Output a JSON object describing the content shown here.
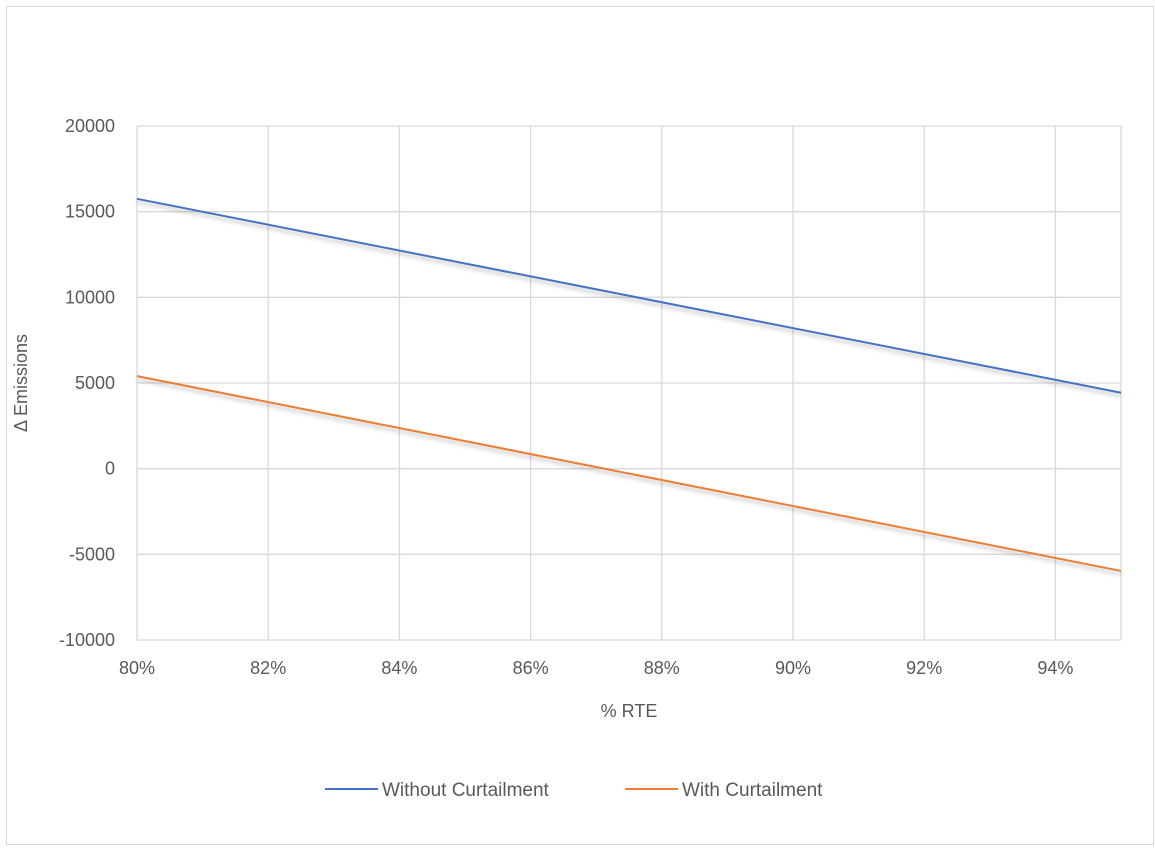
{
  "chart_data": {
    "type": "line",
    "title": "",
    "xlabel": "% RTE",
    "ylabel": "Δ Emissions",
    "x": [
      0.8,
      0.95
    ],
    "xlim": [
      0.8,
      0.95
    ],
    "ylim": [
      -10000,
      20000
    ],
    "x_ticks": [
      "80%",
      "82%",
      "84%",
      "86%",
      "88%",
      "90%",
      "92%",
      "94%"
    ],
    "y_ticks": [
      "20000",
      "15000",
      "10000",
      "5000",
      "0",
      "-5000",
      "-10000"
    ],
    "grid": true,
    "legend_position": "bottom",
    "series": [
      {
        "name": "Without Curtailment",
        "color": "#4472C4",
        "values": [
          15750,
          4430
        ]
      },
      {
        "name": "With Curtailment",
        "color": "#ED7D31",
        "values": [
          5400,
          -5970
        ]
      }
    ]
  }
}
